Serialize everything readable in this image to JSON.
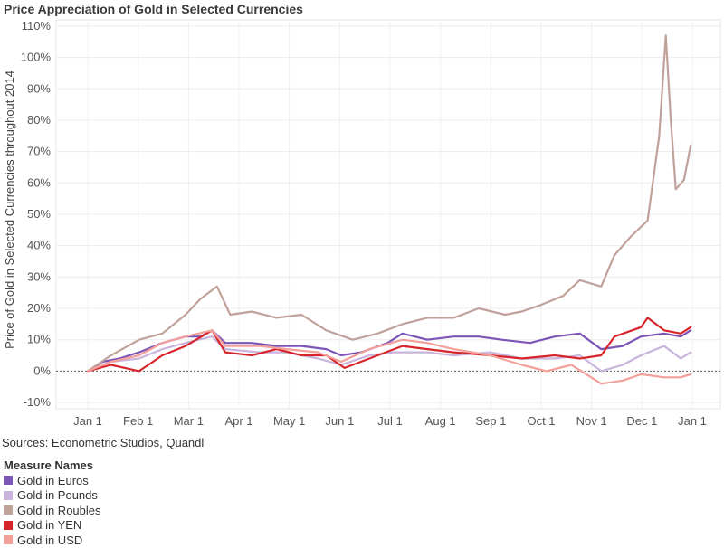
{
  "chart_data": {
    "type": "line",
    "title": "Price Appreciation of Gold in Selected Currencies",
    "ylabel": "Price of Gold in Selected Currencies throughout 2014",
    "xlabel": "",
    "x_ticks": [
      "Jan 1",
      "Feb 1",
      "Mar 1",
      "Apr 1",
      "May 1",
      "Jun 1",
      "Jul 1",
      "Aug 1",
      "Sep 1",
      "Oct 1",
      "Nov 1",
      "Dec 1",
      "Jan 1"
    ],
    "y_ticks": [
      "-10%",
      "0%",
      "10%",
      "20%",
      "30%",
      "40%",
      "50%",
      "60%",
      "70%",
      "80%",
      "90%",
      "100%",
      "110%"
    ],
    "ylim": [
      -12,
      112
    ],
    "xlim": [
      "2014-01-01",
      "2015-01-01"
    ],
    "grid": true,
    "zero_line": "dotted",
    "source": "Sources: Econometric Studios, Quandl",
    "legend_title": "Measure Names",
    "legend_position": "bottom-left",
    "series": [
      {
        "name": "Gold in Euros",
        "color": "#7b55b8",
        "points": [
          [
            "2014-01-01",
            0
          ],
          [
            "2014-01-10",
            3
          ],
          [
            "2014-01-20",
            4
          ],
          [
            "2014-02-01",
            6
          ],
          [
            "2014-02-15",
            9
          ],
          [
            "2014-03-01",
            11
          ],
          [
            "2014-03-10",
            11
          ],
          [
            "2014-03-17",
            13
          ],
          [
            "2014-03-25",
            9
          ],
          [
            "2014-04-10",
            9
          ],
          [
            "2014-04-25",
            8
          ],
          [
            "2014-05-10",
            8
          ],
          [
            "2014-05-25",
            7
          ],
          [
            "2014-06-03",
            5
          ],
          [
            "2014-06-15",
            6
          ],
          [
            "2014-07-01",
            9
          ],
          [
            "2014-07-10",
            12
          ],
          [
            "2014-07-25",
            10
          ],
          [
            "2014-08-10",
            11
          ],
          [
            "2014-08-25",
            11
          ],
          [
            "2014-09-08",
            10
          ],
          [
            "2014-09-25",
            9
          ],
          [
            "2014-10-10",
            11
          ],
          [
            "2014-10-25",
            12
          ],
          [
            "2014-11-07",
            7
          ],
          [
            "2014-11-20",
            8
          ],
          [
            "2014-12-01",
            11
          ],
          [
            "2014-12-15",
            12
          ],
          [
            "2014-12-25",
            11
          ],
          [
            "2014-12-31",
            13
          ]
        ]
      },
      {
        "name": "Gold in Pounds",
        "color": "#c8b4dc",
        "points": [
          [
            "2014-01-01",
            0
          ],
          [
            "2014-01-15",
            3
          ],
          [
            "2014-02-01",
            4
          ],
          [
            "2014-02-15",
            7
          ],
          [
            "2014-03-01",
            9
          ],
          [
            "2014-03-17",
            11
          ],
          [
            "2014-03-25",
            7
          ],
          [
            "2014-04-15",
            6
          ],
          [
            "2014-05-01",
            6
          ],
          [
            "2014-05-20",
            4
          ],
          [
            "2014-06-03",
            2
          ],
          [
            "2014-06-20",
            5
          ],
          [
            "2014-07-05",
            6
          ],
          [
            "2014-07-25",
            6
          ],
          [
            "2014-08-10",
            5
          ],
          [
            "2014-09-01",
            6
          ],
          [
            "2014-09-20",
            4
          ],
          [
            "2014-10-10",
            4
          ],
          [
            "2014-10-25",
            5
          ],
          [
            "2014-11-07",
            0
          ],
          [
            "2014-11-20",
            2
          ],
          [
            "2014-12-01",
            5
          ],
          [
            "2014-12-15",
            8
          ],
          [
            "2014-12-25",
            4
          ],
          [
            "2014-12-31",
            6
          ]
        ]
      },
      {
        "name": "Gold in Roubles",
        "color": "#c1a29a",
        "points": [
          [
            "2014-01-01",
            0
          ],
          [
            "2014-01-15",
            5
          ],
          [
            "2014-02-01",
            10
          ],
          [
            "2014-02-15",
            12
          ],
          [
            "2014-03-01",
            18
          ],
          [
            "2014-03-10",
            23
          ],
          [
            "2014-03-20",
            27
          ],
          [
            "2014-03-28",
            18
          ],
          [
            "2014-04-10",
            19
          ],
          [
            "2014-04-25",
            17
          ],
          [
            "2014-05-10",
            18
          ],
          [
            "2014-05-25",
            13
          ],
          [
            "2014-06-10",
            10
          ],
          [
            "2014-06-25",
            12
          ],
          [
            "2014-07-10",
            15
          ],
          [
            "2014-07-25",
            17
          ],
          [
            "2014-08-10",
            17
          ],
          [
            "2014-08-25",
            20
          ],
          [
            "2014-09-10",
            18
          ],
          [
            "2014-09-20",
            19
          ],
          [
            "2014-10-01",
            21
          ],
          [
            "2014-10-15",
            24
          ],
          [
            "2014-10-25",
            29
          ],
          [
            "2014-11-07",
            27
          ],
          [
            "2014-11-15",
            37
          ],
          [
            "2014-11-25",
            43
          ],
          [
            "2014-12-05",
            48
          ],
          [
            "2014-12-12",
            75
          ],
          [
            "2014-12-16",
            107
          ],
          [
            "2014-12-19",
            80
          ],
          [
            "2014-12-22",
            58
          ],
          [
            "2014-12-27",
            61
          ],
          [
            "2014-12-31",
            72
          ]
        ]
      },
      {
        "name": "Gold in YEN",
        "color": "#d7262b",
        "points": [
          [
            "2014-01-01",
            0
          ],
          [
            "2014-01-15",
            2
          ],
          [
            "2014-02-01",
            0
          ],
          [
            "2014-02-15",
            5
          ],
          [
            "2014-03-01",
            8
          ],
          [
            "2014-03-17",
            13
          ],
          [
            "2014-03-25",
            6
          ],
          [
            "2014-04-10",
            5
          ],
          [
            "2014-04-25",
            7
          ],
          [
            "2014-05-10",
            5
          ],
          [
            "2014-05-25",
            5
          ],
          [
            "2014-06-05",
            1
          ],
          [
            "2014-06-20",
            4
          ],
          [
            "2014-07-10",
            8
          ],
          [
            "2014-07-25",
            7
          ],
          [
            "2014-08-10",
            6
          ],
          [
            "2014-09-01",
            5
          ],
          [
            "2014-09-20",
            4
          ],
          [
            "2014-10-10",
            5
          ],
          [
            "2014-10-25",
            4
          ],
          [
            "2014-11-07",
            5
          ],
          [
            "2014-11-15",
            11
          ],
          [
            "2014-12-01",
            14
          ],
          [
            "2014-12-05",
            17
          ],
          [
            "2014-12-15",
            13
          ],
          [
            "2014-12-25",
            12
          ],
          [
            "2014-12-31",
            14
          ]
        ]
      },
      {
        "name": "Gold in USD",
        "color": "#f4a09a",
        "points": [
          [
            "2014-01-01",
            0
          ],
          [
            "2014-01-15",
            3
          ],
          [
            "2014-02-01",
            5
          ],
          [
            "2014-02-15",
            9
          ],
          [
            "2014-03-01",
            11
          ],
          [
            "2014-03-17",
            13
          ],
          [
            "2014-03-25",
            8
          ],
          [
            "2014-04-15",
            8
          ],
          [
            "2014-05-01",
            7
          ],
          [
            "2014-05-20",
            6
          ],
          [
            "2014-06-03",
            3
          ],
          [
            "2014-06-20",
            7
          ],
          [
            "2014-07-10",
            10
          ],
          [
            "2014-07-25",
            9
          ],
          [
            "2014-08-10",
            7
          ],
          [
            "2014-09-01",
            5
          ],
          [
            "2014-09-20",
            2
          ],
          [
            "2014-10-05",
            0
          ],
          [
            "2014-10-20",
            2
          ],
          [
            "2014-11-07",
            -4
          ],
          [
            "2014-11-20",
            -3
          ],
          [
            "2014-12-01",
            -1
          ],
          [
            "2014-12-15",
            -2
          ],
          [
            "2014-12-25",
            -2
          ],
          [
            "2014-12-31",
            -1
          ]
        ]
      }
    ]
  }
}
